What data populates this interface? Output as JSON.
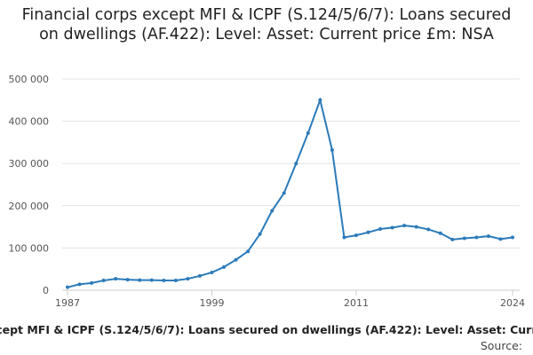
{
  "chart_data": {
    "type": "line",
    "title": "Financial corps except MFI & ICPF (S.124/5/6/7): Loans secured on dwellings (AF.422): Level: Asset: Current price £m: NSA",
    "x": [
      1987,
      1988,
      1989,
      1990,
      1991,
      1992,
      1993,
      1994,
      1995,
      1996,
      1997,
      1998,
      1999,
      2000,
      2001,
      2002,
      2003,
      2004,
      2005,
      2006,
      2007,
      2008,
      2009,
      2010,
      2011,
      2012,
      2013,
      2014,
      2015,
      2016,
      2017,
      2018,
      2019,
      2020,
      2021,
      2022,
      2023,
      2024
    ],
    "series": [
      {
        "name": "Financial corps except MFI & ICPF (S.124/5/6/7): Loans secured on dwellings (AF.422): Level: Asset: Current price £m: NSA",
        "color": "#2b7bba",
        "values": [
          7000,
          14000,
          17000,
          23000,
          27000,
          25000,
          24000,
          24000,
          23000,
          23000,
          27000,
          34000,
          42000,
          55000,
          72000,
          92000,
          133000,
          188000,
          230000,
          300000,
          372000,
          450000,
          332000,
          125000,
          130000,
          137000,
          145000,
          148000,
          153000,
          150000,
          144000,
          135000,
          120000,
          123000,
          125000,
          128000,
          121000,
          125000
        ]
      }
    ],
    "xlim": [
      1987,
      2024
    ],
    "xticks": [
      1987,
      1999,
      2011,
      2024
    ],
    "ylim": [
      0,
      500000
    ],
    "yticks": [
      0,
      {
        "value": 100000,
        "label": "100 000"
      },
      {
        "value": 200000,
        "label": "200 000"
      },
      {
        "value": 300000,
        "label": "300 000"
      },
      {
        "value": 400000,
        "label": "400 000"
      },
      {
        "value": 500000,
        "label": "500 000"
      }
    ],
    "grid": true,
    "source": "Source:"
  }
}
